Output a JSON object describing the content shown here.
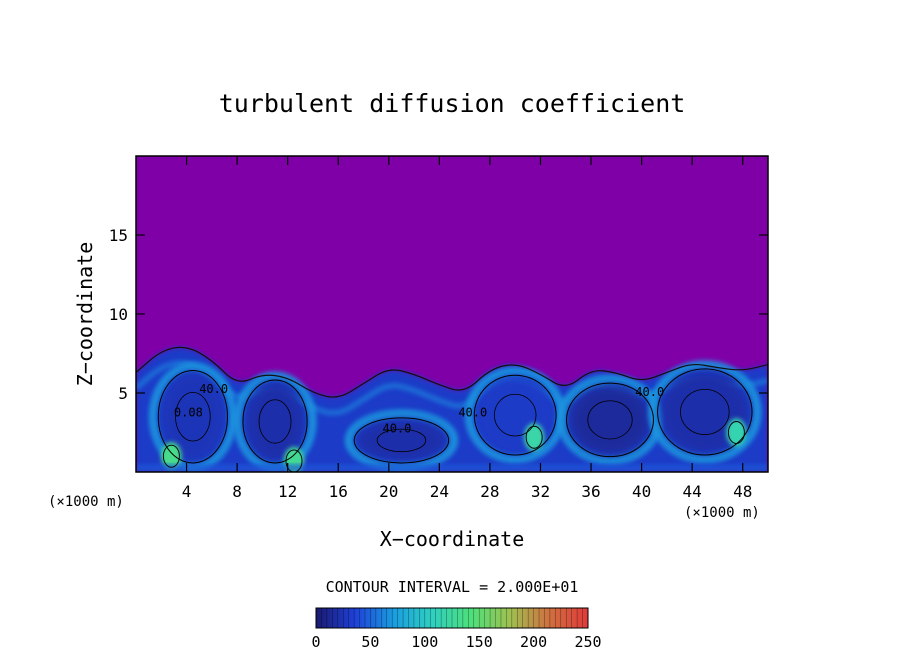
{
  "chart_data": {
    "type": "heatmap",
    "title": "turbulent diffusion coefficient",
    "xlabel": "X−coordinate",
    "ylabel": "Z−coordinate",
    "x_unit": "(×1000 m)",
    "z_unit": "(×1000 m)",
    "xlim": [
      0,
      50
    ],
    "ylim": [
      0,
      20
    ],
    "x_ticks": [
      4,
      8,
      12,
      16,
      20,
      24,
      28,
      32,
      36,
      40,
      44,
      48
    ],
    "y_ticks": [
      5,
      10,
      15
    ],
    "contour_interval_text": "CONTOUR INTERVAL = 2.000E+01",
    "contour_labels": [
      {
        "x": 5.0,
        "z": 5.0,
        "text": "40.0"
      },
      {
        "x": 3.0,
        "z": 3.5,
        "text": "0.08"
      },
      {
        "x": 19.5,
        "z": 2.5,
        "text": "40.0"
      },
      {
        "x": 25.5,
        "z": 3.5,
        "text": "40.0"
      },
      {
        "x": 39.5,
        "z": 4.8,
        "text": "40.0"
      }
    ],
    "field_background_value": 0,
    "turbulent_layer_top": [
      [
        0.0,
        6.3
      ],
      [
        2.0,
        7.7
      ],
      [
        4.0,
        8.0
      ],
      [
        6.0,
        7.1
      ],
      [
        8.0,
        5.5
      ],
      [
        10.0,
        6.2
      ],
      [
        12.0,
        6.0
      ],
      [
        14.0,
        5.0
      ],
      [
        16.0,
        4.6
      ],
      [
        18.0,
        5.6
      ],
      [
        20.0,
        6.6
      ],
      [
        22.0,
        6.2
      ],
      [
        24.0,
        5.5
      ],
      [
        26.0,
        5.0
      ],
      [
        28.0,
        6.5
      ],
      [
        30.0,
        6.9
      ],
      [
        32.0,
        6.2
      ],
      [
        34.0,
        5.2
      ],
      [
        36.0,
        6.5
      ],
      [
        38.0,
        6.3
      ],
      [
        40.0,
        5.7
      ],
      [
        42.0,
        6.3
      ],
      [
        44.0,
        6.9
      ],
      [
        46.0,
        6.6
      ],
      [
        48.0,
        6.4
      ],
      [
        50.0,
        6.8
      ]
    ],
    "eddy_cores": [
      {
        "x": 4.5,
        "z": 3.5,
        "rx": 2.5,
        "rz": 2.8,
        "value": 50
      },
      {
        "x": 11.0,
        "z": 3.2,
        "rx": 2.3,
        "rz": 2.5,
        "value": 45
      },
      {
        "x": 21.0,
        "z": 2.0,
        "rx": 3.5,
        "rz": 1.3,
        "value": 45
      },
      {
        "x": 30.0,
        "z": 3.6,
        "rx": 3.0,
        "rz": 2.4,
        "value": 55
      },
      {
        "x": 37.5,
        "z": 3.3,
        "rx": 3.2,
        "rz": 2.2,
        "value": 40
      },
      {
        "x": 45.0,
        "z": 3.8,
        "rx": 3.5,
        "rz": 2.6,
        "value": 45
      }
    ],
    "local_maxima": [
      {
        "x": 2.8,
        "z": 1.0,
        "value": 135
      },
      {
        "x": 12.5,
        "z": 0.7,
        "value": 130
      },
      {
        "x": 31.5,
        "z": 2.2,
        "value": 120
      },
      {
        "x": 47.5,
        "z": 2.5,
        "value": 115
      }
    ],
    "colorbar": {
      "min": 0,
      "max": 250,
      "ticks": [
        0,
        50,
        100,
        150,
        200,
        250
      ],
      "colors": [
        "#1a1a6e",
        "#1e40d8",
        "#1a9de0",
        "#2fd0c0",
        "#4de07a",
        "#a0c050",
        "#d07040",
        "#e03a3a"
      ]
    },
    "background_color": "#8000a8"
  }
}
